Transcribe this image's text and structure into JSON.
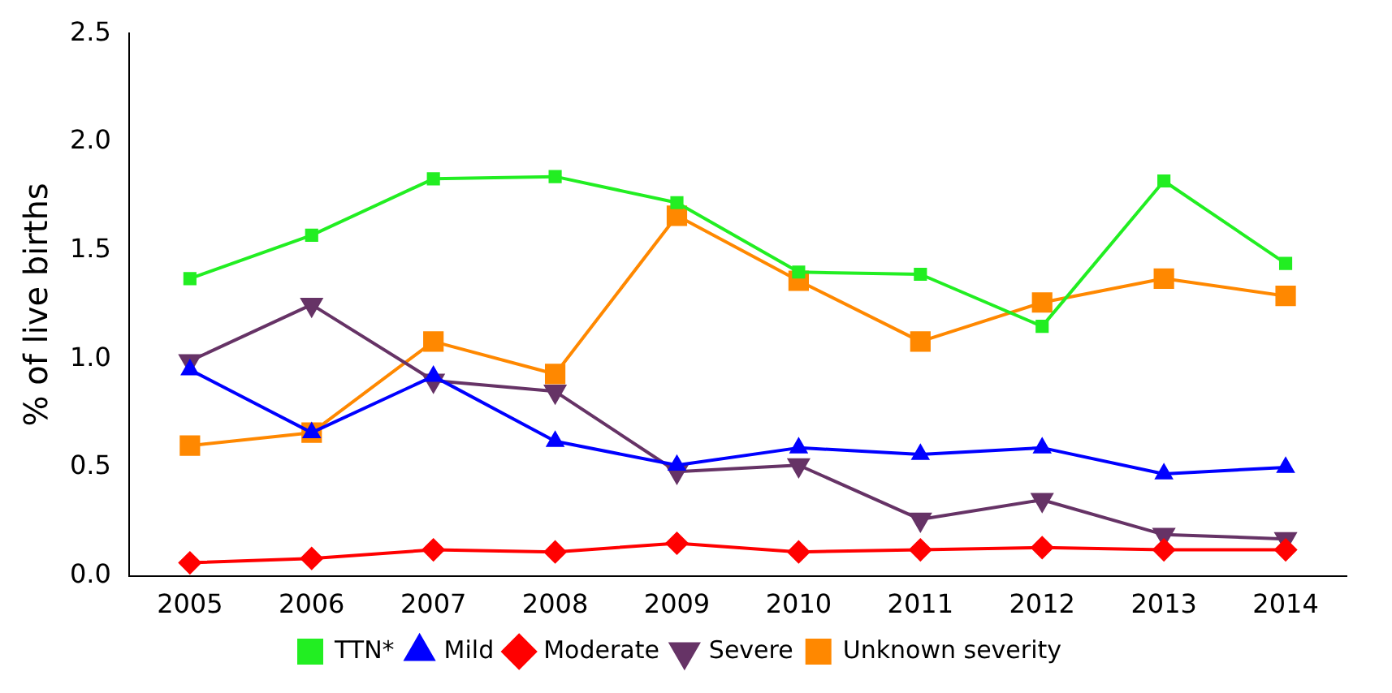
{
  "chart_data": {
    "type": "line",
    "ylabel": "% of live births",
    "categories": [
      "2005",
      "2006",
      "2007",
      "2008",
      "2009",
      "2010",
      "2011",
      "2012",
      "2013",
      "2014"
    ],
    "ylim": [
      0,
      2.5
    ],
    "yticks": [
      {
        "value": 0,
        "label": "0.0"
      },
      {
        "value": 0.5,
        "label": "0.5"
      },
      {
        "value": 1,
        "label": "1.0"
      },
      {
        "value": 1.5,
        "label": "1.5"
      },
      {
        "value": 2,
        "label": "2.0"
      },
      {
        "value": 2.5,
        "label": "2.5"
      }
    ],
    "grid": false,
    "legend": "bottom",
    "line_style": "solid",
    "series": [
      {
        "name": "TTN*",
        "color": "#22ee22",
        "marker": "square",
        "values": [
          1.37,
          1.57,
          1.83,
          1.84,
          1.72,
          1.4,
          1.39,
          1.15,
          1.82,
          1.44
        ]
      },
      {
        "name": "Mild",
        "color": "#0000ff",
        "marker": "triangle",
        "values": [
          0.95,
          0.66,
          0.92,
          0.62,
          0.51,
          0.59,
          0.56,
          0.59,
          0.47,
          0.5
        ]
      },
      {
        "name": "Moderate",
        "color": "#ff0000",
        "marker": "diamond",
        "values": [
          0.06,
          0.08,
          0.12,
          0.11,
          0.15,
          0.11,
          0.12,
          0.13,
          0.12,
          0.12
        ]
      },
      {
        "name": "Severe",
        "color": "#663366",
        "marker": "triangle-down",
        "values": [
          0.99,
          1.25,
          0.9,
          0.85,
          0.48,
          0.51,
          0.26,
          0.35,
          0.19,
          0.17
        ]
      },
      {
        "name": "Unknown severity",
        "color": "#ff8800",
        "marker": "square",
        "values": [
          0.6,
          0.66,
          1.08,
          0.93,
          1.66,
          1.36,
          1.08,
          1.26,
          1.37,
          1.29
        ]
      }
    ]
  }
}
